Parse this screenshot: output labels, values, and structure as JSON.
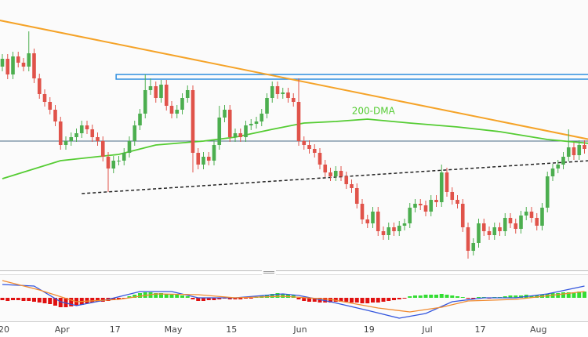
{
  "chart_data": [
    {
      "type": "candlestick",
      "xlim": [
        0,
        110
      ],
      "ylim": [
        0,
        350
      ],
      "up_color": "#4cae4f",
      "down_color": "#e0534a",
      "categories": [
        "20",
        null,
        null,
        null,
        null,
        null,
        null,
        null,
        null,
        null,
        null,
        "Apr",
        null,
        null,
        null,
        null,
        null,
        null,
        null,
        null,
        null,
        "17",
        null,
        null,
        null,
        null,
        null,
        null,
        null,
        null,
        null,
        null,
        "May",
        null,
        null,
        null,
        null,
        null,
        null,
        null,
        null,
        null,
        null,
        "15",
        null,
        null,
        null,
        null,
        null,
        null,
        null,
        null,
        null,
        null,
        null,
        null,
        "Jun",
        null,
        null,
        null,
        null,
        null,
        null,
        null,
        null,
        null,
        null,
        null,
        null,
        "19",
        null,
        null,
        null,
        null,
        null,
        null,
        null,
        null,
        null,
        null,
        "Jul",
        null,
        null,
        null,
        null,
        null,
        null,
        null,
        null,
        null,
        "17",
        null,
        null,
        null,
        null,
        null,
        null,
        null,
        null,
        null,
        null,
        "Aug",
        null,
        null,
        null,
        null,
        null,
        null,
        null,
        null,
        null
      ],
      "open": [
        265,
        275,
        255,
        278,
        270,
        265,
        282,
        250,
        230,
        220,
        210,
        195,
        165,
        170,
        175,
        180,
        190,
        185,
        175,
        170,
        150,
        135,
        145,
        145,
        155,
        170,
        190,
        205,
        235,
        240,
        225,
        242,
        215,
        205,
        210,
        225,
        235,
        155,
        140,
        150,
        145,
        165,
        200,
        210,
        175,
        180,
        175,
        190,
        192,
        195,
        205,
        225,
        240,
        230,
        232,
        225,
        220,
        170,
        165,
        160,
        155,
        140,
        130,
        125,
        132,
        125,
        115,
        110,
        90,
        70,
        65,
        80,
        55,
        50,
        60,
        55,
        62,
        65,
        85,
        90,
        88,
        80,
        95,
        92,
        130,
        105,
        95,
        90,
        60,
        30,
        40,
        65,
        55,
        50,
        60,
        55,
        72,
        65,
        58,
        75,
        80,
        72,
        62,
        85,
        125,
        135,
        140,
        150,
        162,
        152,
        165
      ],
      "high": [
        281,
        281,
        284,
        284,
        276,
        310,
        288,
        256,
        236,
        226,
        216,
        201,
        176,
        181,
        186,
        196,
        196,
        191,
        181,
        176,
        156,
        151,
        151,
        161,
        176,
        196,
        211,
        255,
        250,
        246,
        248,
        248,
        221,
        216,
        231,
        241,
        241,
        161,
        156,
        156,
        171,
        215,
        216,
        216,
        186,
        186,
        196,
        198,
        201,
        211,
        231,
        246,
        246,
        238,
        238,
        231,
        250,
        176,
        171,
        166,
        161,
        146,
        136,
        138,
        138,
        131,
        121,
        116,
        96,
        76,
        86,
        86,
        61,
        66,
        66,
        68,
        71,
        91,
        96,
        96,
        94,
        101,
        101,
        140,
        136,
        111,
        101,
        96,
        66,
        46,
        71,
        71,
        61,
        66,
        66,
        78,
        78,
        71,
        81,
        86,
        86,
        78,
        91,
        131,
        141,
        146,
        156,
        185,
        168,
        171,
        171
      ],
      "low": [
        259,
        249,
        249,
        264,
        259,
        259,
        244,
        224,
        214,
        204,
        189,
        159,
        159,
        164,
        169,
        174,
        179,
        169,
        164,
        144,
        105,
        129,
        139,
        139,
        149,
        164,
        184,
        199,
        229,
        219,
        219,
        209,
        199,
        199,
        204,
        219,
        130,
        134,
        134,
        139,
        139,
        159,
        194,
        169,
        169,
        169,
        169,
        184,
        186,
        189,
        199,
        219,
        224,
        224,
        219,
        214,
        164,
        159,
        154,
        149,
        134,
        124,
        119,
        119,
        119,
        109,
        104,
        84,
        64,
        59,
        59,
        49,
        44,
        44,
        49,
        49,
        56,
        59,
        79,
        82,
        74,
        74,
        86,
        86,
        99,
        89,
        84,
        54,
        20,
        24,
        34,
        49,
        44,
        44,
        49,
        49,
        59,
        52,
        52,
        69,
        66,
        56,
        56,
        79,
        119,
        129,
        134,
        144,
        146,
        146,
        154
      ],
      "close": [
        275,
        255,
        278,
        270,
        265,
        282,
        250,
        230,
        220,
        210,
        195,
        165,
        170,
        175,
        180,
        190,
        185,
        175,
        170,
        150,
        135,
        145,
        145,
        155,
        170,
        190,
        205,
        235,
        240,
        225,
        242,
        215,
        205,
        210,
        225,
        235,
        155,
        140,
        150,
        145,
        165,
        200,
        210,
        175,
        180,
        175,
        190,
        192,
        195,
        205,
        225,
        240,
        230,
        232,
        225,
        220,
        170,
        165,
        160,
        155,
        140,
        130,
        125,
        132,
        125,
        115,
        110,
        90,
        70,
        65,
        80,
        55,
        50,
        60,
        55,
        62,
        65,
        85,
        90,
        88,
        80,
        95,
        92,
        130,
        105,
        95,
        90,
        60,
        30,
        40,
        65,
        55,
        50,
        60,
        55,
        72,
        65,
        58,
        75,
        80,
        72,
        62,
        85,
        125,
        135,
        140,
        150,
        162,
        152,
        165,
        160
      ],
      "series": [
        {
          "name": "200-DMA",
          "color": "#55cc33",
          "x": [
            0,
            11,
            22,
            29,
            38,
            44,
            51,
            57,
            63,
            69,
            77,
            86,
            94,
            103,
            111
          ],
          "values": [
            122,
            145,
            153,
            165,
            170,
            175,
            185,
            193,
            195,
            198,
            193,
            188,
            182,
            172,
            167
          ]
        }
      ],
      "lines": [
        {
          "x": [
            -0.5,
            111
          ],
          "values": [
            324,
            172
          ],
          "color": "#f5a328",
          "dashed": false
        },
        {
          "x": [
            15,
            111
          ],
          "values": [
            103,
            145
          ],
          "color": "#222222",
          "dashed": true
        },
        {
          "x": [
            -0.5,
            111
          ],
          "values": [
            170,
            170
          ],
          "color": "#4a6a86",
          "dashed": false
        }
      ],
      "zone": {
        "x": [
          21.5,
          111
        ],
        "values": [
          249,
          255
        ],
        "color": "#2f8fe0"
      }
    },
    {
      "type": "macd",
      "xlim": [
        0,
        110
      ],
      "ylim": [
        -30,
        30
      ],
      "up_color": "#33dd33",
      "down_color": "#e01010",
      "values": [
        -3,
        -4,
        -3,
        -3,
        -4,
        -4,
        -5,
        -6,
        -7,
        -8,
        -10,
        -12,
        -12,
        -11,
        -10,
        -9,
        -7,
        -6,
        -5,
        -5,
        -4,
        -3,
        -2,
        -1,
        2,
        4,
        6,
        7,
        7,
        6,
        6,
        5,
        4,
        4,
        3,
        2,
        -2,
        -4,
        -4,
        -3,
        -3,
        -2,
        -1,
        -2,
        -2,
        -2,
        -1,
        -1,
        1,
        3,
        4,
        5,
        6,
        5,
        4,
        3,
        -2,
        -4,
        -5,
        -5,
        -6,
        -6,
        -6,
        -5,
        -5,
        -5,
        -6,
        -6,
        -7,
        -7,
        -6,
        -6,
        -5,
        -4,
        -3,
        -2,
        -1,
        2,
        3,
        3,
        4,
        4,
        4,
        5,
        4,
        3,
        2,
        1,
        -1,
        -2,
        1,
        1,
        -1,
        1,
        1,
        2,
        3,
        3,
        3,
        4,
        3,
        3,
        4,
        5,
        6,
        6,
        7,
        7,
        7,
        8,
        8
      ],
      "series": [
        {
          "color": "#3355dd",
          "x": [
            0,
            6,
            11,
            14,
            20,
            26,
            32,
            37,
            44,
            53,
            56,
            62,
            69,
            75,
            80,
            85,
            91,
            97,
            103,
            110
          ],
          "values": [
            17,
            15,
            -5,
            -10,
            -2,
            8,
            8,
            0,
            0,
            5,
            3,
            -5,
            -16,
            -26,
            -20,
            -5,
            0,
            0,
            5,
            15
          ]
        },
        {
          "color": "#f08a30",
          "x": [
            0,
            7,
            14,
            22,
            29,
            37,
            44,
            53,
            62,
            71,
            77,
            83,
            88,
            97,
            110
          ],
          "values": [
            22,
            10,
            -5,
            -2,
            5,
            4,
            0,
            2,
            -2,
            -13,
            -18,
            -12,
            -4,
            -2,
            8
          ]
        }
      ]
    }
  ]
}
